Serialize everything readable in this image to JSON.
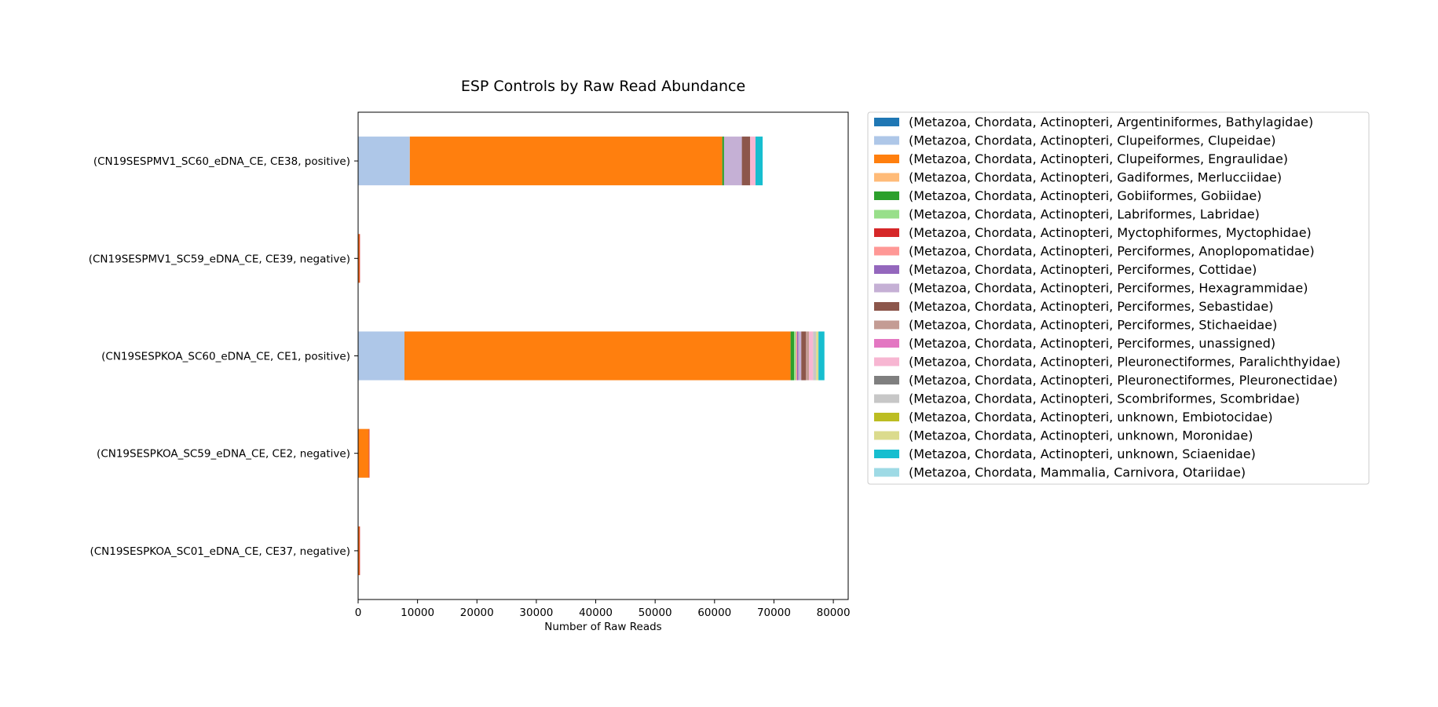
{
  "chart_data": {
    "type": "bar",
    "orientation": "horizontal",
    "stacked": true,
    "title": "ESP Controls by Raw Read Abundance",
    "xlabel": "Number of Raw Reads",
    "ylabel": "",
    "xlim": [
      0,
      82500
    ],
    "xticks": [
      0,
      10000,
      20000,
      30000,
      40000,
      50000,
      60000,
      70000,
      80000
    ],
    "grid": false,
    "legend_position": "right, outside plot",
    "categories": [
      "(CN19SESPMV1_SC60_eDNA_CE, CE38, positive)",
      "(CN19SESPMV1_SC59_eDNA_CE, CE39, negative)",
      "(CN19SESPKOA_SC60_eDNA_CE, CE1, positive)",
      "(CN19SESPKOA_SC59_eDNA_CE, CE2, negative)",
      "(CN19SESPKOA_SC01_eDNA_CE, CE37, negative)"
    ],
    "series": [
      {
        "name": "(Metazoa, Chordata, Actinopteri, Argentiniformes, Bathylagidae)",
        "color": "#1f77b4",
        "values": [
          0,
          0,
          0,
          0,
          0
        ]
      },
      {
        "name": "(Metazoa, Chordata, Actinopteri, Clupeiformes, Clupeidae)",
        "color": "#aec7e8",
        "values": [
          8700,
          0,
          7800,
          0,
          0
        ]
      },
      {
        "name": "(Metazoa, Chordata, Actinopteri, Clupeiformes, Engraulidae)",
        "color": "#ff7f0e",
        "values": [
          52600,
          200,
          65000,
          1800,
          200
        ]
      },
      {
        "name": "(Metazoa, Chordata, Actinopteri, Gadiformes, Merlucciidae)",
        "color": "#ffbb78",
        "values": [
          0,
          0,
          0,
          0,
          0
        ]
      },
      {
        "name": "(Metazoa, Chordata, Actinopteri, Gobiiformes, Gobiidae)",
        "color": "#2ca02c",
        "values": [
          300,
          0,
          600,
          0,
          0
        ]
      },
      {
        "name": "(Metazoa, Chordata, Actinopteri, Labriformes, Labridae)",
        "color": "#98df8a",
        "values": [
          0,
          0,
          300,
          0,
          0
        ]
      },
      {
        "name": "(Metazoa, Chordata, Actinopteri, Myctophiformes, Myctophidae)",
        "color": "#d62728",
        "values": [
          0,
          100,
          0,
          100,
          100
        ]
      },
      {
        "name": "(Metazoa, Chordata, Actinopteri, Perciformes, Anoplopomatidae)",
        "color": "#ff9896",
        "values": [
          0,
          0,
          200,
          0,
          0
        ]
      },
      {
        "name": "(Metazoa, Chordata, Actinopteri, Perciformes, Cottidae)",
        "color": "#9467bd",
        "values": [
          0,
          0,
          200,
          0,
          0
        ]
      },
      {
        "name": "(Metazoa, Chordata, Actinopteri, Perciformes, Hexagrammidae)",
        "color": "#c5b0d5",
        "values": [
          3000,
          0,
          500,
          0,
          0
        ]
      },
      {
        "name": "(Metazoa, Chordata, Actinopteri, Perciformes, Sebastidae)",
        "color": "#8c564b",
        "values": [
          1400,
          0,
          800,
          0,
          0
        ]
      },
      {
        "name": "(Metazoa, Chordata, Actinopteri, Perciformes, Stichaeidae)",
        "color": "#c49c94",
        "values": [
          0,
          0,
          500,
          0,
          0
        ]
      },
      {
        "name": "(Metazoa, Chordata, Actinopteri, Perciformes, unassigned)",
        "color": "#e377c2",
        "values": [
          0,
          0,
          0,
          0,
          0
        ]
      },
      {
        "name": "(Metazoa, Chordata, Actinopteri, Pleuronectiformes, Paralichthyidae)",
        "color": "#f7b6d2",
        "values": [
          900,
          0,
          700,
          0,
          0
        ]
      },
      {
        "name": "(Metazoa, Chordata, Actinopteri, Pleuronectiformes, Pleuronectidae)",
        "color": "#7f7f7f",
        "values": [
          0,
          0,
          0,
          0,
          0
        ]
      },
      {
        "name": "(Metazoa, Chordata, Actinopteri, Scombriformes, Scombridae)",
        "color": "#c7c7c7",
        "values": [
          0,
          0,
          500,
          0,
          0
        ]
      },
      {
        "name": "(Metazoa, Chordata, Actinopteri, unknown, Embiotocidae)",
        "color": "#bcbd22",
        "values": [
          0,
          0,
          0,
          0,
          0
        ]
      },
      {
        "name": "(Metazoa, Chordata, Actinopteri, unknown, Moronidae)",
        "color": "#dbdb8d",
        "values": [
          0,
          0,
          400,
          0,
          0
        ]
      },
      {
        "name": "(Metazoa, Chordata, Actinopteri, unknown, Sciaenidae)",
        "color": "#17becf",
        "values": [
          1200,
          0,
          1000,
          0,
          0
        ]
      },
      {
        "name": "(Metazoa, Chordata, Mammalia, Carnivora, Otariidae)",
        "color": "#9edae5",
        "values": [
          0,
          0,
          0,
          0,
          0
        ]
      }
    ]
  }
}
